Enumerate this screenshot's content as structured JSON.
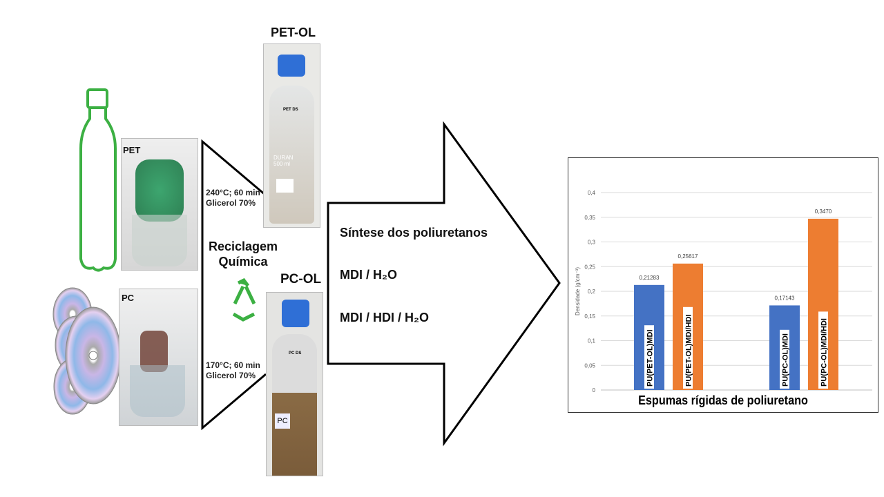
{
  "labels": {
    "pet": "PET",
    "pc": "PC",
    "pet_ol": "PET-OL",
    "pc_ol": "PC-OL",
    "pet_conditions_1": "240°C; 60 min",
    "pet_conditions_2": "Glicerol 70%",
    "pc_conditions_1": "170°C; 60 min",
    "pc_conditions_2": "Glicerol 70%",
    "recycling_1": "Reciclagem",
    "recycling_2": "Química",
    "pet_bottle_tag": "PET DS",
    "pc_bottle_tag": "PC DS",
    "pet_bottle_brand": "DURAN 500 ml",
    "pc_bottle_sticker": "PC"
  },
  "synthesis": {
    "title": "Síntese dos poliuretanos",
    "route_1": "MDI / H₂O",
    "route_2": "MDI / HDI / H₂O"
  },
  "colors": {
    "bottle_outline": "#3cb043",
    "recycle_icon": "#3cb043",
    "blue_bar": "#4472c4",
    "orange_bar": "#ed7d31",
    "cap": "#2f6fd6"
  },
  "icons": [
    "bottle-outline-icon",
    "cd-stack-icon",
    "recycle-icon",
    "arrow-right-icon"
  ],
  "chart_data": {
    "type": "bar",
    "xlabel": "Espumas rígidas de poliuretano",
    "ylabel": "Densidade (g/cm⁻³)",
    "ylim": [
      0,
      0.4
    ],
    "yticks": [
      "0",
      "0,05",
      "0,1",
      "0,15",
      "0,2",
      "0,25",
      "0,3",
      "0,35",
      "0,4"
    ],
    "grid": true,
    "bars": [
      {
        "label": "PU(PET-OL)MDI",
        "value": 0.21283,
        "data_label": "0,21283",
        "color": "#4472c4"
      },
      {
        "label": "PU(PET-OL)MDI/HDI",
        "value": 0.25617,
        "data_label": "0,25617",
        "color": "#ed7d31"
      },
      {
        "label": "PU(PC-OL)MDI",
        "value": 0.17143,
        "data_label": "0,17143",
        "color": "#4472c4"
      },
      {
        "label": "PU(PC-OL)MDI/HDI",
        "value": 0.347,
        "data_label": "0,3470",
        "color": "#ed7d31"
      }
    ]
  }
}
